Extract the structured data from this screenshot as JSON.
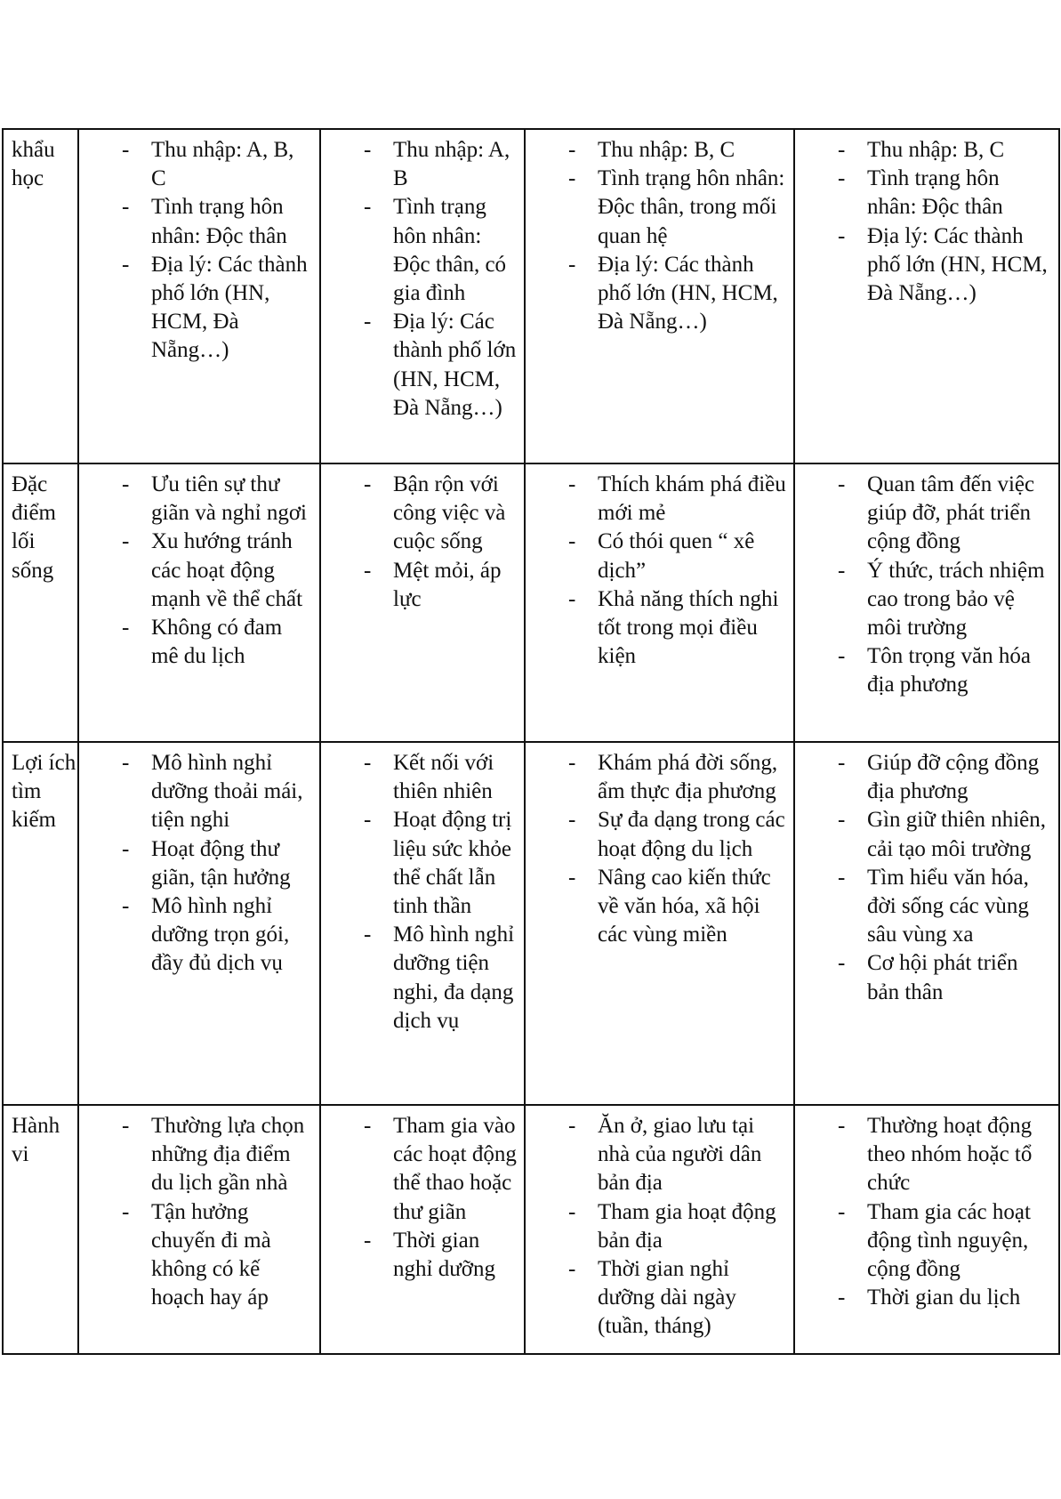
{
  "rows": [
    {
      "label": "khẩu học",
      "cells": [
        [
          "Thu nhập: A, B, C",
          "Tình trạng hôn nhân: Độc thân",
          "Địa lý: Các thành phố lớn (HN, HCM, Đà Nẵng…)"
        ],
        [
          "Thu nhập: A, B",
          "Tình trạng hôn nhân: Độc thân, có gia đình",
          "Địa lý: Các thành phố lớn (HN, HCM, Đà Nẵng…)"
        ],
        [
          "Thu nhập: B, C",
          "Tình trạng hôn nhân: Độc thân, trong mối quan hệ",
          "Địa lý: Các thành phố lớn (HN, HCM, Đà Nẵng…)"
        ],
        [
          "Thu nhập: B, C",
          "Tình trạng hôn nhân: Độc thân",
          "Địa lý: Các thành phố lớn (HN, HCM, Đà Nẵng…)"
        ]
      ]
    },
    {
      "label": "Đặc điểm lối sống",
      "cells": [
        [
          "Ưu tiên sự thư giãn và nghỉ ngơi",
          "Xu hướng tránh các hoạt động mạnh về thể chất",
          "Không có đam mê du lịch"
        ],
        [
          "Bận rộn với công việc và cuộc sống",
          "Mệt mỏi, áp lực"
        ],
        [
          "Thích khám phá điều mới mẻ",
          "Có thói quen “ xê dịch”",
          "Khả năng thích nghi tốt trong mọi điều kiện"
        ],
        [
          "Quan tâm đến việc giúp đỡ, phát triển cộng đồng",
          "Ý thức, trách nhiệm cao trong bảo vệ môi trường",
          "Tôn trọng văn hóa địa phương"
        ]
      ]
    },
    {
      "label": "Lợi ích tìm kiếm",
      "cells": [
        [
          "Mô hình nghỉ dưỡng thoải mái, tiện nghi",
          "Hoạt động thư giãn, tận hưởng",
          "Mô hình nghỉ dưỡng trọn gói, đầy đủ dịch vụ"
        ],
        [
          "Kết nối với thiên nhiên",
          "Hoạt động trị liệu sức khỏe thể chất lẫn tinh thần",
          "Mô hình nghỉ dưỡng tiện nghi, đa dạng dịch vụ"
        ],
        [
          "Khám phá đời sống, ẩm thực địa phương",
          "Sự đa dạng trong các hoạt động du lịch",
          "Nâng cao kiến thức về văn hóa, xã hội các vùng miền"
        ],
        [
          "Giúp đỡ cộng đồng địa phương",
          "Gìn giữ thiên nhiên, cải tạo môi trường",
          "Tìm hiểu văn hóa, đời sống các vùng sâu vùng xa",
          "Cơ hội phát triển bản thân"
        ]
      ]
    },
    {
      "label": "Hành vi",
      "cells": [
        [
          "Thường lựa chọn những địa điểm du lịch gần nhà",
          "Tận hưởng chuyến đi mà không có kế hoạch hay áp"
        ],
        [
          "Tham gia vào các hoạt động thể thao hoặc thư giãn",
          "Thời gian nghỉ dưỡng"
        ],
        [
          "Ăn ở, giao lưu tại nhà của người dân bản địa",
          "Tham gia hoạt động bản địa",
          "Thời gian nghỉ dưỡng dài ngày (tuần, tháng)"
        ],
        [
          "Thường hoạt động theo nhóm hoặc tổ chức",
          "Tham gia các hoạt động tình nguyện, cộng đồng",
          "Thời gian du lịch"
        ]
      ]
    }
  ],
  "bullet": "-"
}
